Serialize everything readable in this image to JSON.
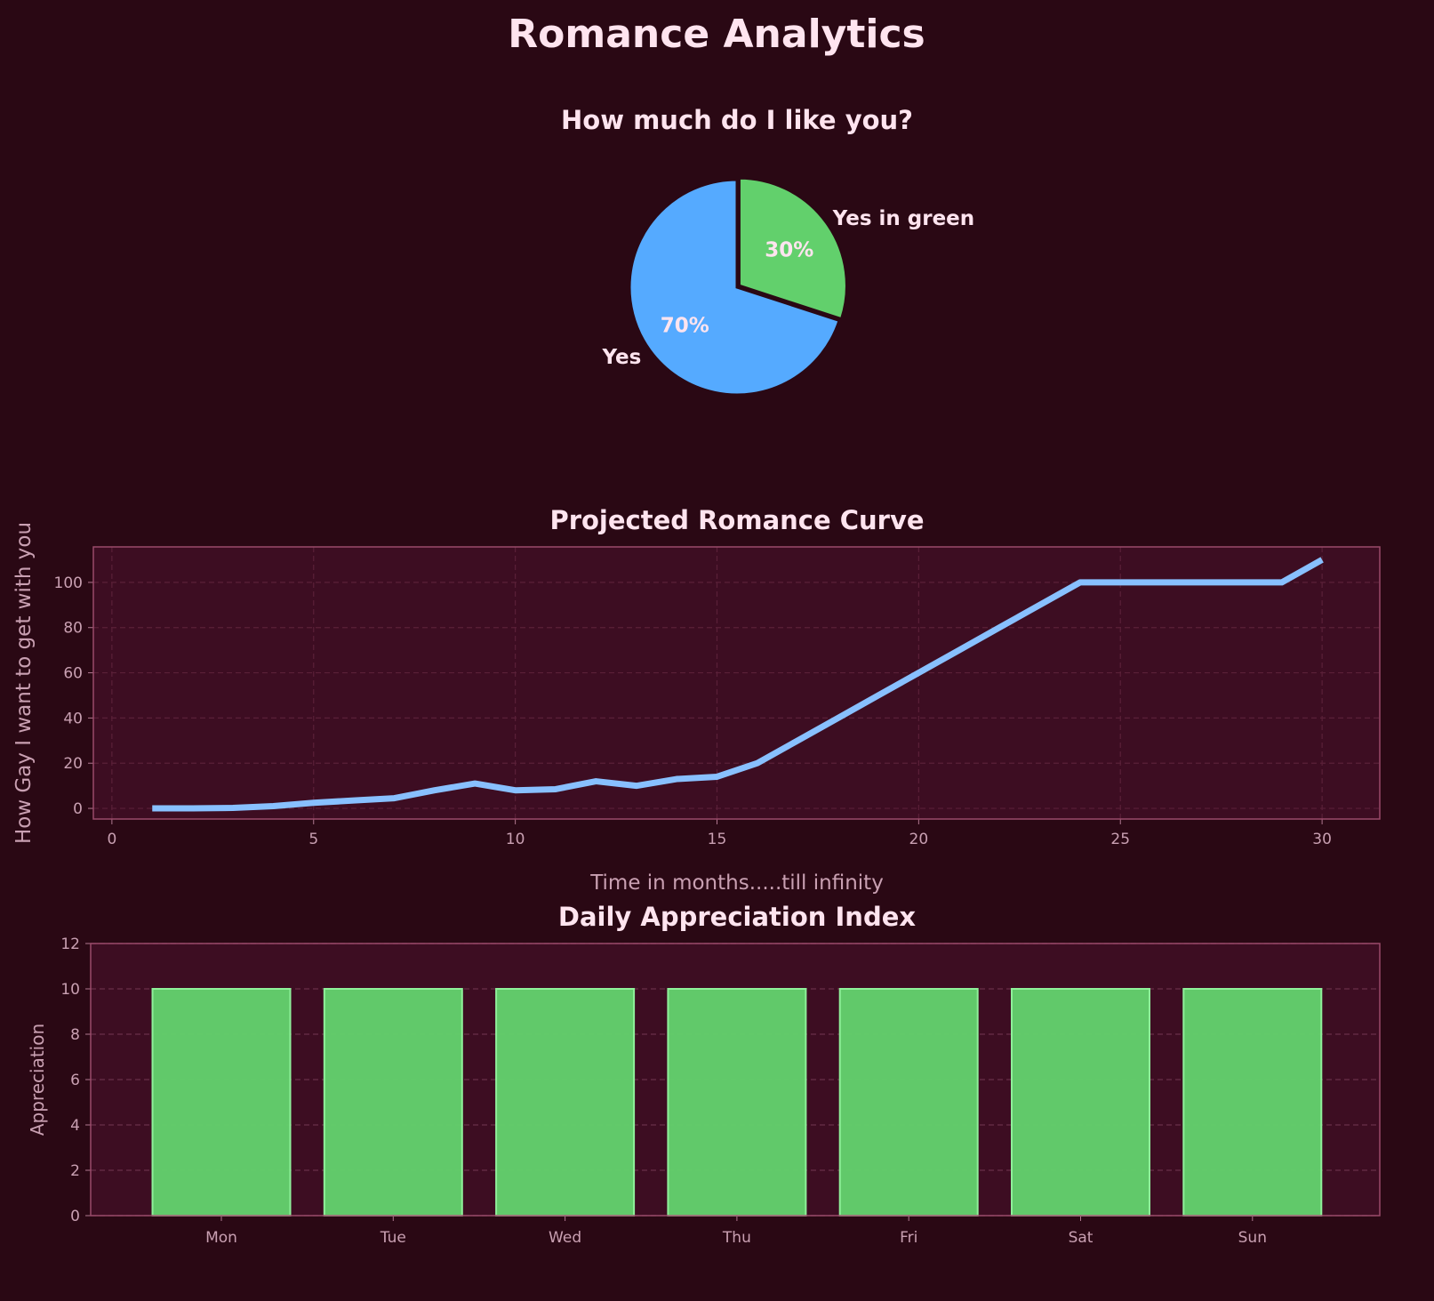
{
  "title": "Romance Analytics",
  "colors": {
    "background": "#2a0814",
    "plot_bg": "#3d0d22",
    "blue": "#55aaff",
    "line": "#88c0ff",
    "green": "#62d06c",
    "text": "#ffe4ef",
    "tick": "#c9a0b2"
  },
  "chart_data": [
    {
      "type": "pie",
      "title": "How much do I like you?",
      "labels": [
        "Yes",
        "Yes in green"
      ],
      "values": [
        70,
        30
      ],
      "pct_labels": [
        "70%",
        "30%"
      ],
      "colors": [
        "#55aaff",
        "#62d06c"
      ],
      "startangle": 90
    },
    {
      "type": "line",
      "title": "Projected Romance Curve",
      "xlabel": "Time in months.....till infinity",
      "ylabel": "How Gay I want to get with you",
      "x": [
        1,
        2,
        3,
        4,
        5,
        6,
        7,
        8,
        9,
        10,
        11,
        12,
        13,
        14,
        15,
        16,
        17,
        18,
        19,
        20,
        21,
        22,
        23,
        24,
        25,
        26,
        27,
        28,
        29,
        30
      ],
      "y": [
        0,
        0,
        0.2,
        1,
        2.5,
        3.5,
        4.5,
        8,
        11,
        8,
        8.5,
        12,
        10,
        13,
        14,
        20,
        30,
        40,
        50,
        60,
        70,
        80,
        90,
        100,
        100,
        100,
        100,
        100,
        100,
        110
      ],
      "xlim": [
        -0.46,
        31.43
      ],
      "ylim": [
        -4.7,
        115.7
      ],
      "xticks": [
        0,
        5,
        10,
        15,
        20,
        25,
        30
      ],
      "yticks": [
        0,
        20,
        40,
        60,
        80,
        100
      ],
      "grid": true
    },
    {
      "type": "bar",
      "title": "Daily Appreciation Index",
      "xlabel": "",
      "ylabel": "Appreciation",
      "categories": [
        "Mon",
        "Tue",
        "Wed",
        "Thu",
        "Fri",
        "Sat",
        "Sun"
      ],
      "values": [
        10,
        10,
        10,
        10,
        10,
        10,
        10
      ],
      "ylim": [
        0,
        12
      ],
      "yticks": [
        0,
        2,
        4,
        6,
        8,
        10,
        12
      ],
      "grid": true
    }
  ]
}
